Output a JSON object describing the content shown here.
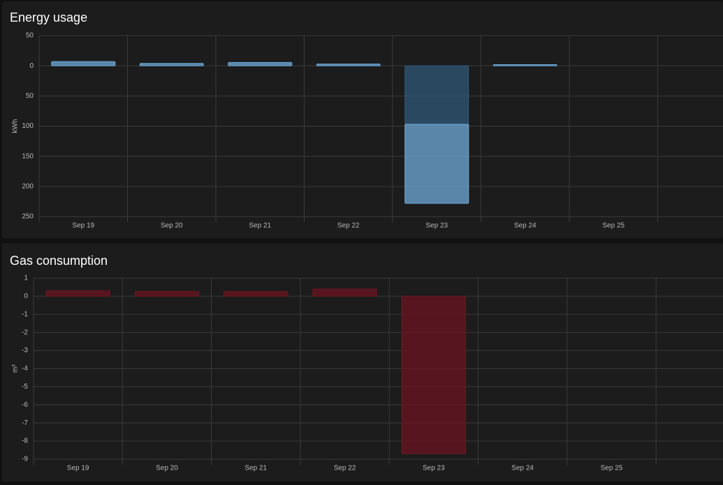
{
  "chart_data": [
    {
      "type": "bar",
      "title": "Energy usage",
      "y_label": "kWh",
      "categories": [
        "Sep 19",
        "Sep 20",
        "Sep 21",
        "Sep 22",
        "Sep 23",
        "Sep 24",
        "Sep 25",
        null
      ],
      "series": [
        {
          "color": "#2f5878",
          "values": [
            null,
            null,
            null,
            null,
            -97,
            null,
            null,
            null
          ]
        },
        {
          "color": "#6fa9d8",
          "values": [
            7,
            4,
            5.5,
            3,
            -131,
            2,
            null,
            null
          ]
        }
      ],
      "ylim": [
        -250,
        50
      ],
      "yticks": [
        50,
        0,
        {
          "value": -50,
          "label": "50"
        },
        {
          "value": -100,
          "label": "100"
        },
        {
          "value": -150,
          "label": "150"
        },
        {
          "value": -200,
          "label": "200"
        },
        {
          "value": -250,
          "label": "250"
        }
      ],
      "grid": true
    },
    {
      "type": "bar",
      "title": "Gas consumption",
      "y_label": "m³",
      "categories": [
        "Sep 19",
        "Sep 20",
        "Sep 21",
        "Sep 22",
        "Sep 23",
        "Sep 24",
        "Sep 25",
        null
      ],
      "series": [
        {
          "color": "#6b1420",
          "values": [
            0.31,
            0.27,
            0.26,
            0.4,
            -8.7,
            null,
            null,
            null
          ]
        }
      ],
      "ylim": [
        -9,
        1
      ],
      "yticks": [
        1,
        0,
        -1,
        -2,
        -3,
        -4,
        -5,
        -6,
        -7,
        -8,
        -9
      ],
      "grid": true
    }
  ]
}
